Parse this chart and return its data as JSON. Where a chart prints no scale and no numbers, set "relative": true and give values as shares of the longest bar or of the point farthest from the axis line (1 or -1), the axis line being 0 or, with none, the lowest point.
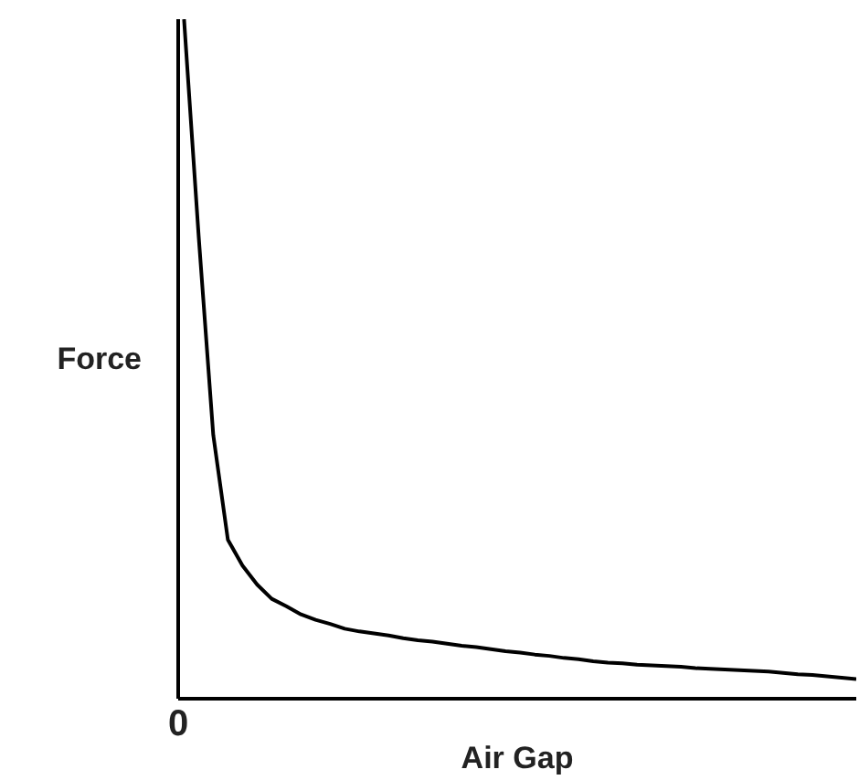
{
  "chart_data": {
    "type": "line",
    "xlabel": "Air Gap",
    "ylabel": "Force",
    "relative": true,
    "categories": [
      null,
      null,
      null,
      null,
      null,
      null,
      null,
      null,
      null,
      null,
      null,
      null,
      null,
      null,
      null,
      null,
      null,
      null,
      null,
      null,
      null,
      null,
      null,
      null,
      null,
      null,
      null,
      null,
      null,
      null,
      null,
      null,
      null,
      null,
      null,
      null,
      null,
      null,
      null,
      null,
      null,
      null,
      null,
      null,
      null,
      null,
      null
    ],
    "values": [
      1.0,
      0.681,
      0.388,
      0.234,
      0.196,
      0.168,
      0.147,
      0.136,
      0.124,
      0.116,
      0.11,
      0.103,
      0.099,
      0.096,
      0.093,
      0.089,
      0.086,
      0.084,
      0.081,
      0.078,
      0.076,
      0.073,
      0.07,
      0.068,
      0.065,
      0.063,
      0.06,
      0.058,
      0.055,
      0.053,
      0.052,
      0.05,
      0.049,
      0.048,
      0.047,
      0.045,
      0.044,
      0.043,
      0.042,
      0.041,
      0.04,
      0.038,
      0.036,
      0.035,
      0.033,
      0.031,
      0.029
    ],
    "color": "#000000",
    "line_style": "solid",
    "annotations": [
      "0"
    ]
  }
}
